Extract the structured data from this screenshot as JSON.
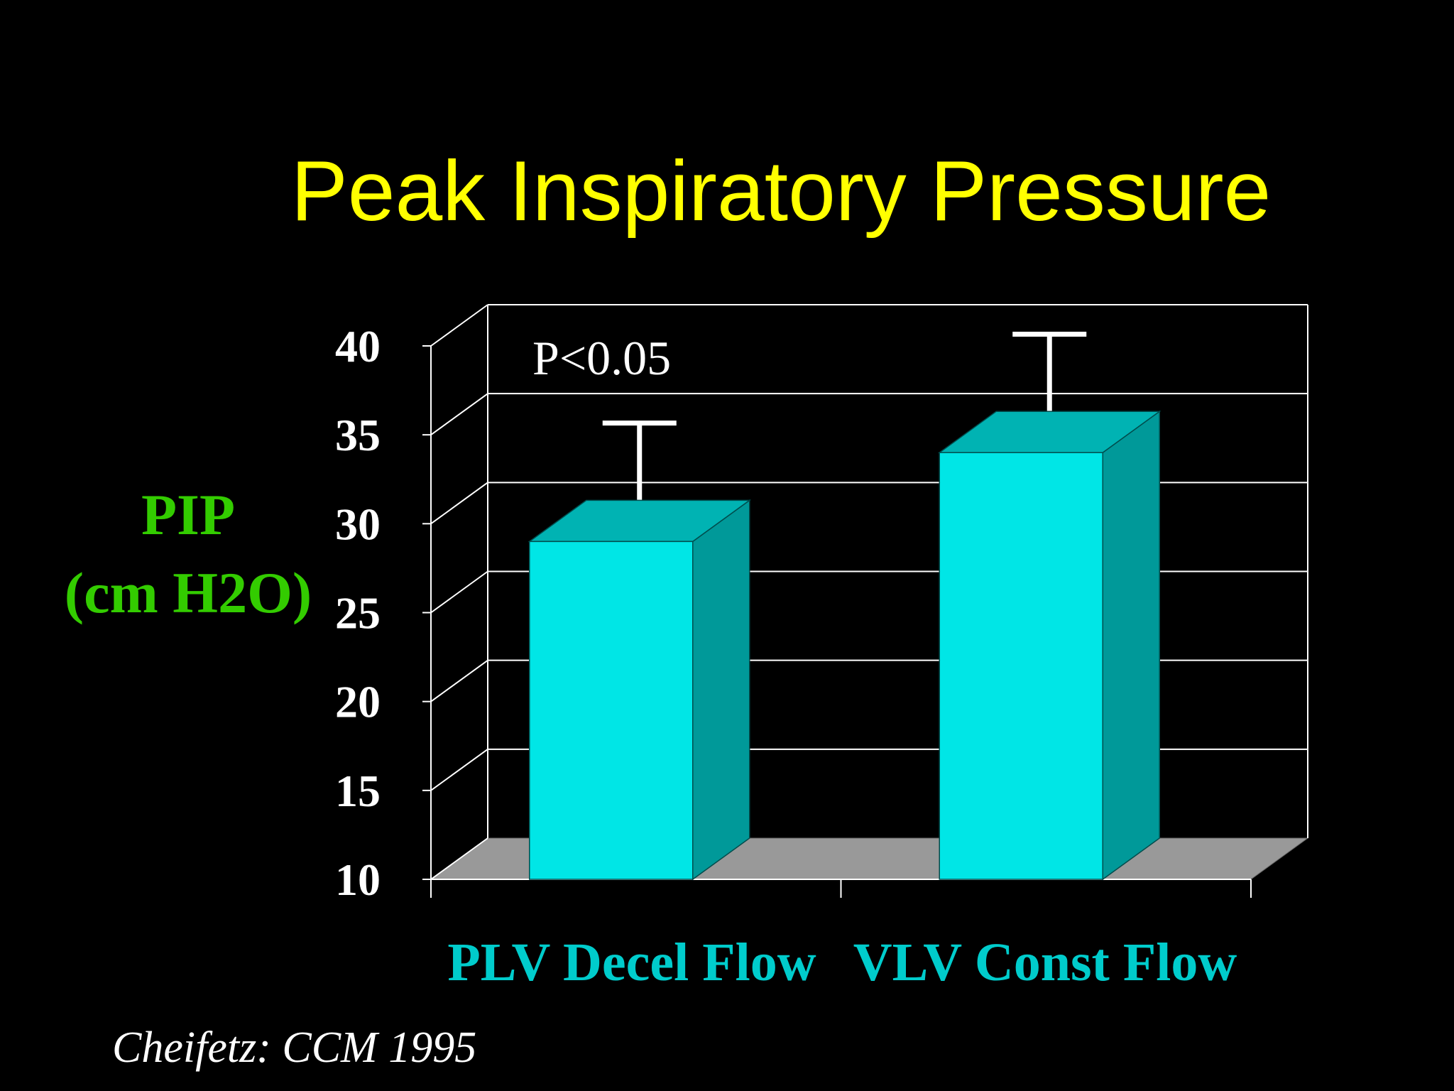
{
  "slide": {
    "title": "Peak Inspiratory Pressure",
    "ylabel_line1": "PIP",
    "ylabel_line2": "(cm H2O)",
    "citation": "Cheifetz: CCM 1995"
  },
  "colors": {
    "background": "#000000",
    "title": "#ffff00",
    "ylabel": "#33cc00",
    "category_label": "#00cccc",
    "bar_front": "#00e6e6",
    "bar_top": "#00b3b3",
    "bar_side": "#009999",
    "floor": "#999999",
    "grid": "#ffffff"
  },
  "chart_data": {
    "type": "bar",
    "style": "3d",
    "title": "Peak Inspiratory Pressure",
    "xlabel": "",
    "ylabel": "PIP (cm H2O)",
    "categories": [
      "PLV Decel Flow",
      "VLV Const Flow"
    ],
    "series": [
      {
        "name": "PIP",
        "values": [
          29,
          34
        ],
        "error_upper": [
          34.5,
          39.5
        ]
      }
    ],
    "ylim": [
      10,
      40
    ],
    "yticks": [
      "10",
      "15",
      "20",
      "25",
      "30",
      "35",
      "40"
    ],
    "grid": true,
    "annotations": [
      "P<0.05"
    ]
  }
}
